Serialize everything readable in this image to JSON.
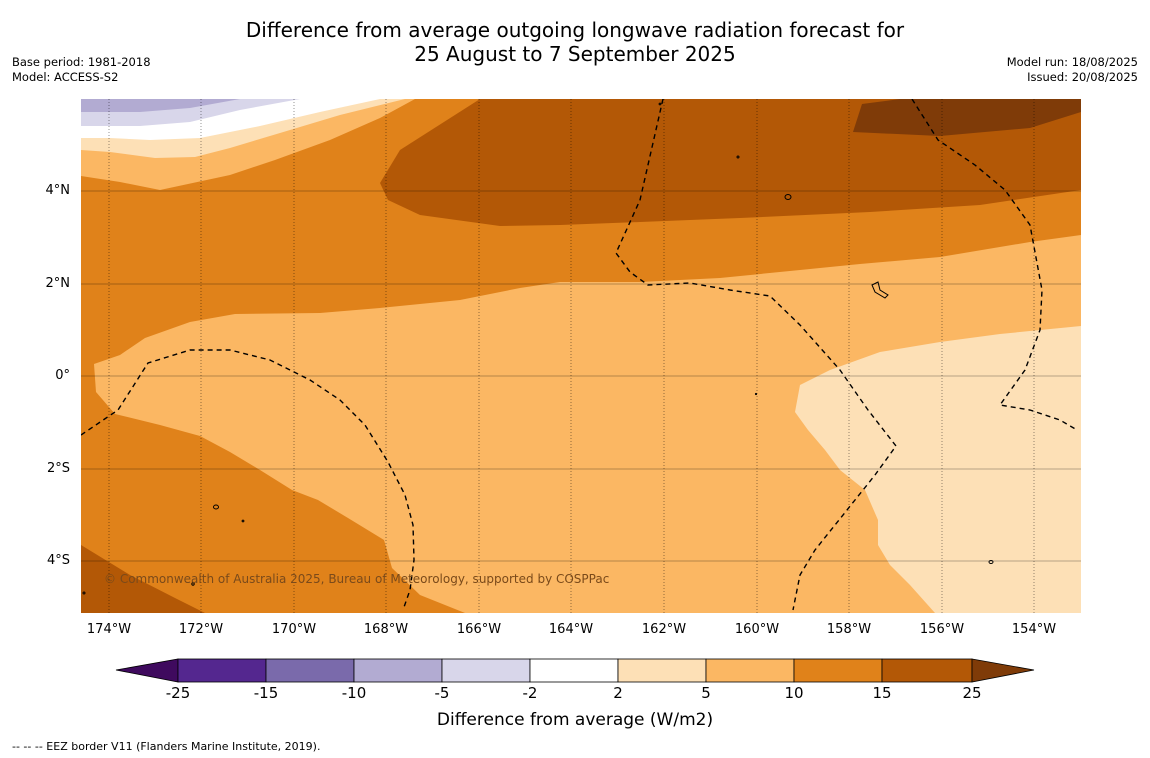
{
  "title_line1": "Difference from average outgoing longwave radiation forecast for",
  "title_line2": "25 August to 7 September 2025",
  "base_period": "Base period: 1981-2018",
  "model": "Model: ACCESS-S2",
  "model_run": "Model run: 18/08/2025",
  "issued": "Issued: 20/08/2025",
  "lat_labels": [
    "4°N",
    "2°N",
    "0°",
    "2°S",
    "4°S"
  ],
  "lon_labels": [
    "174°W",
    "172°W",
    "170°W",
    "168°W",
    "166°W",
    "164°W",
    "162°W",
    "160°W",
    "158°W",
    "156°W",
    "154°W"
  ],
  "copyright": "© Commonwealth of Australia 2025, Bureau of Meteorology, supported by COSPPac",
  "colorbar": {
    "ticks": [
      "-25",
      "-15",
      "-10",
      "-5",
      "-2",
      "2",
      "5",
      "10",
      "15",
      "25"
    ],
    "colors": [
      "#3f0a5e",
      "#54278f",
      "#7a6aab",
      "#b2abd2",
      "#d8d6ea",
      "#ffffff",
      "#fde0b6",
      "#fbb763",
      "#e0821a",
      "#b35806",
      "#7f3b08"
    ],
    "title": "Difference from average (W/m2)"
  },
  "footnote": "--  --  -- EEZ border V11 (Flanders Marine Institute, 2019)."
}
